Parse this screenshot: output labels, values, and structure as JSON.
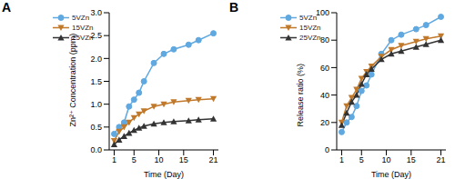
{
  "chart_data": [
    {
      "type": "line",
      "panel_label": "A",
      "x_label": "Time (Day)",
      "y_label": "Zn²⁺ Concentration (ppm)",
      "x": [
        1,
        2,
        3,
        4,
        5,
        6,
        7,
        9,
        11,
        13,
        16,
        18,
        21
      ],
      "xlim": [
        0,
        22
      ],
      "xticks": [
        1,
        5,
        10,
        15,
        21
      ],
      "ylim": [
        0,
        3
      ],
      "yticks": [
        {
          "value": 0,
          "label": "0.0"
        },
        0.5,
        {
          "value": 1,
          "label": "1.0"
        },
        1.5,
        {
          "value": 2,
          "label": "2.0"
        },
        2.5,
        {
          "value": 3,
          "label": "3.0"
        }
      ],
      "legend": "upper left",
      "series": [
        {
          "name": "5VZn",
          "color": "#5fa8e0",
          "marker": "circle",
          "values": [
            0.35,
            0.5,
            0.6,
            0.95,
            1.1,
            1.25,
            1.5,
            1.9,
            2.1,
            2.2,
            2.3,
            2.4,
            2.55
          ]
        },
        {
          "name": "15VZn",
          "color": "#c0782a",
          "marker": "triangle-down",
          "values": [
            0.2,
            0.4,
            0.5,
            0.6,
            0.7,
            0.78,
            0.85,
            0.95,
            1.0,
            1.05,
            1.08,
            1.1,
            1.12
          ]
        },
        {
          "name": "25VZn",
          "color": "#333333",
          "marker": "triangle-up",
          "values": [
            0.12,
            0.22,
            0.3,
            0.37,
            0.43,
            0.48,
            0.52,
            0.57,
            0.6,
            0.62,
            0.64,
            0.66,
            0.68
          ]
        }
      ]
    },
    {
      "type": "line",
      "panel_label": "B",
      "x_label": "Time (Day)",
      "y_label": "Release ratio (%)",
      "x": [
        1,
        2,
        3,
        4,
        5,
        6,
        7,
        9,
        11,
        13,
        16,
        18,
        21
      ],
      "xlim": [
        0,
        22
      ],
      "xticks": [
        1,
        5,
        10,
        15,
        21
      ],
      "ylim": [
        0,
        100
      ],
      "yticks": [
        0,
        20,
        40,
        60,
        80,
        100
      ],
      "legend": "upper left",
      "series": [
        {
          "name": "5VZn",
          "color": "#5fa8e0",
          "marker": "circle",
          "values": [
            13,
            20,
            24,
            32,
            43,
            47,
            55,
            70,
            80,
            84,
            88,
            91,
            97
          ]
        },
        {
          "name": "15VZn",
          "color": "#c0782a",
          "marker": "triangle-down",
          "values": [
            20,
            32,
            38,
            44,
            52,
            57,
            61,
            68,
            73,
            76,
            79,
            81,
            83
          ]
        },
        {
          "name": "25VZn",
          "color": "#333333",
          "marker": "triangle-up",
          "values": [
            18,
            27,
            35,
            40,
            48,
            55,
            59,
            66,
            70,
            72,
            75,
            77,
            80
          ]
        }
      ]
    }
  ]
}
